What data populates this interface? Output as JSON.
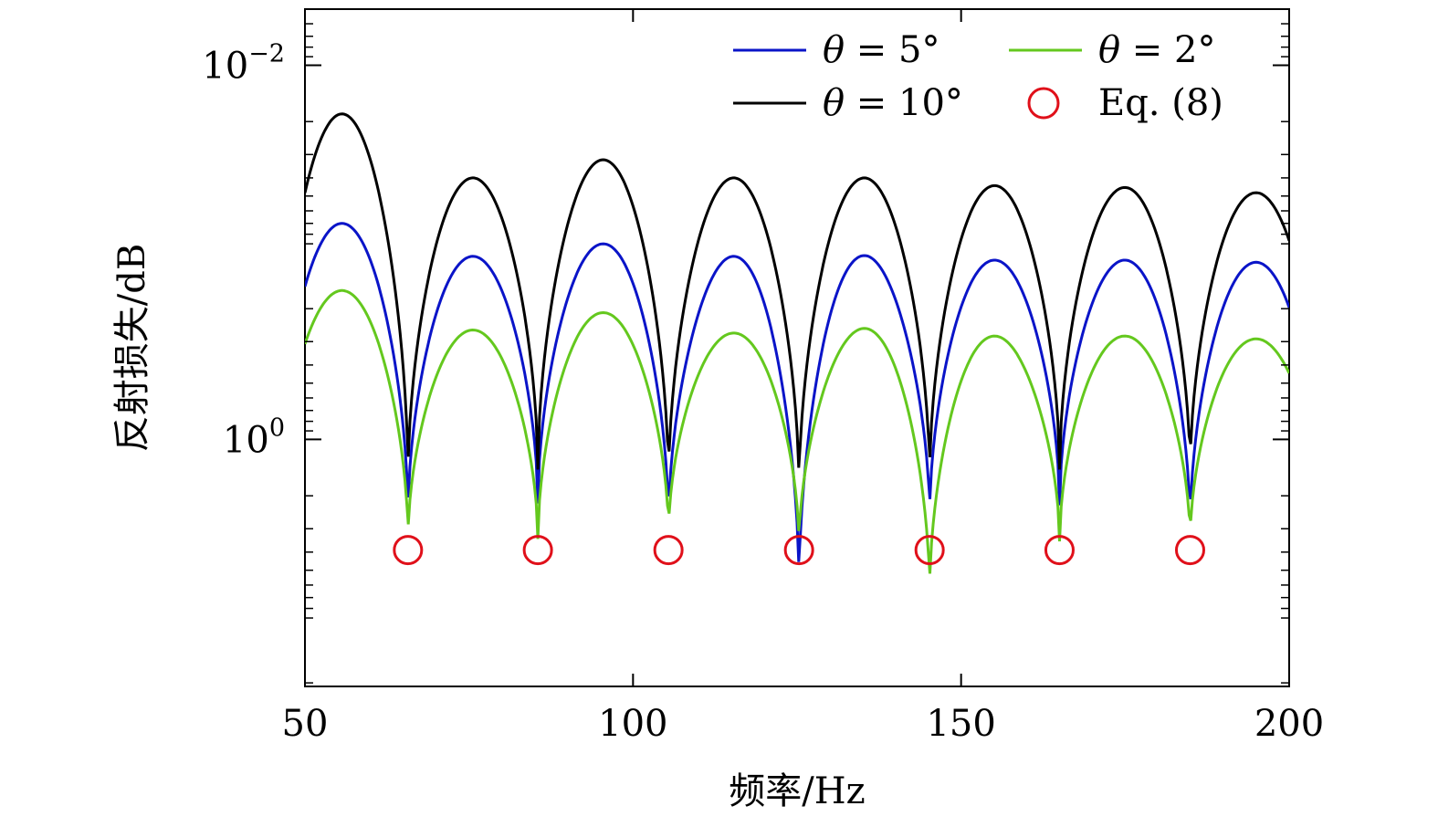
{
  "chart_data": {
    "type": "line",
    "title": "",
    "xlabel": "频率/Hz",
    "ylabel": "反射损失/dB",
    "xlim": [
      50,
      200
    ],
    "ylim_log10": [
      1.32,
      -2.3
    ],
    "y_axis_reversed": true,
    "y_scale": "log",
    "xticks": [
      50,
      100,
      150,
      200
    ],
    "xtick_labels": [
      "50",
      "100",
      "150",
      "200"
    ],
    "yticks": [
      {
        "value": 0.01,
        "base": "10",
        "exp": "−2"
      },
      {
        "value": 1,
        "base": "10",
        "exp": "0"
      }
    ],
    "series": [
      {
        "name": "θ = 5°",
        "color": "#0a14c8",
        "peaks": [
          0.07,
          0.105,
          0.09,
          0.105,
          0.104,
          0.11,
          0.11,
          0.113
        ],
        "minima": [
          2.55,
          2.2,
          2.8,
          6.0,
          2.6,
          2.25,
          2.9
        ]
      },
      {
        "name": "θ = 10°",
        "color": "#000000",
        "peaks": [
          0.0182,
          0.04,
          0.032,
          0.04,
          0.04,
          0.044,
          0.045,
          0.048
        ],
        "minima": [
          1.6,
          1.45,
          1.7,
          1.85,
          1.6,
          1.45,
          1.5
        ]
      },
      {
        "name": "θ = 2°",
        "color": "#64c81e",
        "peaks": [
          0.16,
          0.26,
          0.21,
          0.27,
          0.255,
          0.28,
          0.28,
          0.29
        ],
        "minima": [
          3.4,
          3.4,
          3.2,
          3.7,
          6.5,
          3.5,
          3.5
        ]
      }
    ],
    "markers": {
      "name": "Eq. (8)",
      "color": "#e0101a",
      "x": [
        65.7,
        85.5,
        105.4,
        125.3,
        145.2,
        165,
        184.9
      ],
      "y": 3.9
    },
    "legend": {
      "position": "top-right",
      "entries": [
        {
          "label_var": "θ",
          "label_rest": "= 5°",
          "color": "#0a14c8",
          "kind": "line"
        },
        {
          "label_var": "θ",
          "label_rest": "= 2°",
          "color": "#64c81e",
          "kind": "line"
        },
        {
          "label_var": "θ",
          "label_rest": "= 10°",
          "color": "#000000",
          "kind": "line"
        },
        {
          "label_var": "",
          "label_rest": "Eq. (8)",
          "color": "#e0101a",
          "kind": "circle"
        }
      ]
    }
  }
}
